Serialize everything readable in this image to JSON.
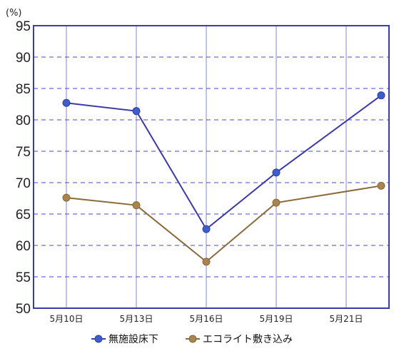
{
  "chart_data": {
    "type": "line",
    "unit_label": "(%)",
    "categories": [
      "5月10日",
      "5月13日",
      "5月16日",
      "5月19日",
      "5月21日"
    ],
    "x_tick_positions": [
      0,
      1,
      2,
      3,
      4
    ],
    "ylim": [
      50,
      95
    ],
    "yticks": [
      "50",
      "55",
      "60",
      "65",
      "70",
      "75",
      "80",
      "85",
      "90",
      "95"
    ],
    "grid": true,
    "legend_position": "bottom",
    "series": [
      {
        "name": "無施設床下",
        "color": "#3a3aa8",
        "marker_color": "#3a5fc8",
        "x": [
          0,
          1,
          2,
          3,
          4.5
        ],
        "values": [
          82.7,
          81.4,
          62.6,
          71.6,
          83.9
        ]
      },
      {
        "name": "エコライト敷き込み",
        "color": "#8a6a3a",
        "marker_color": "#a88450",
        "x": [
          0,
          1,
          2,
          3,
          4.5
        ],
        "values": [
          67.6,
          66.4,
          57.4,
          66.8,
          69.5
        ]
      }
    ],
    "frame_color": "#3a3aa8",
    "grid_h_color": "#4a4ac8",
    "grid_v_color": "#9a9ad0"
  }
}
